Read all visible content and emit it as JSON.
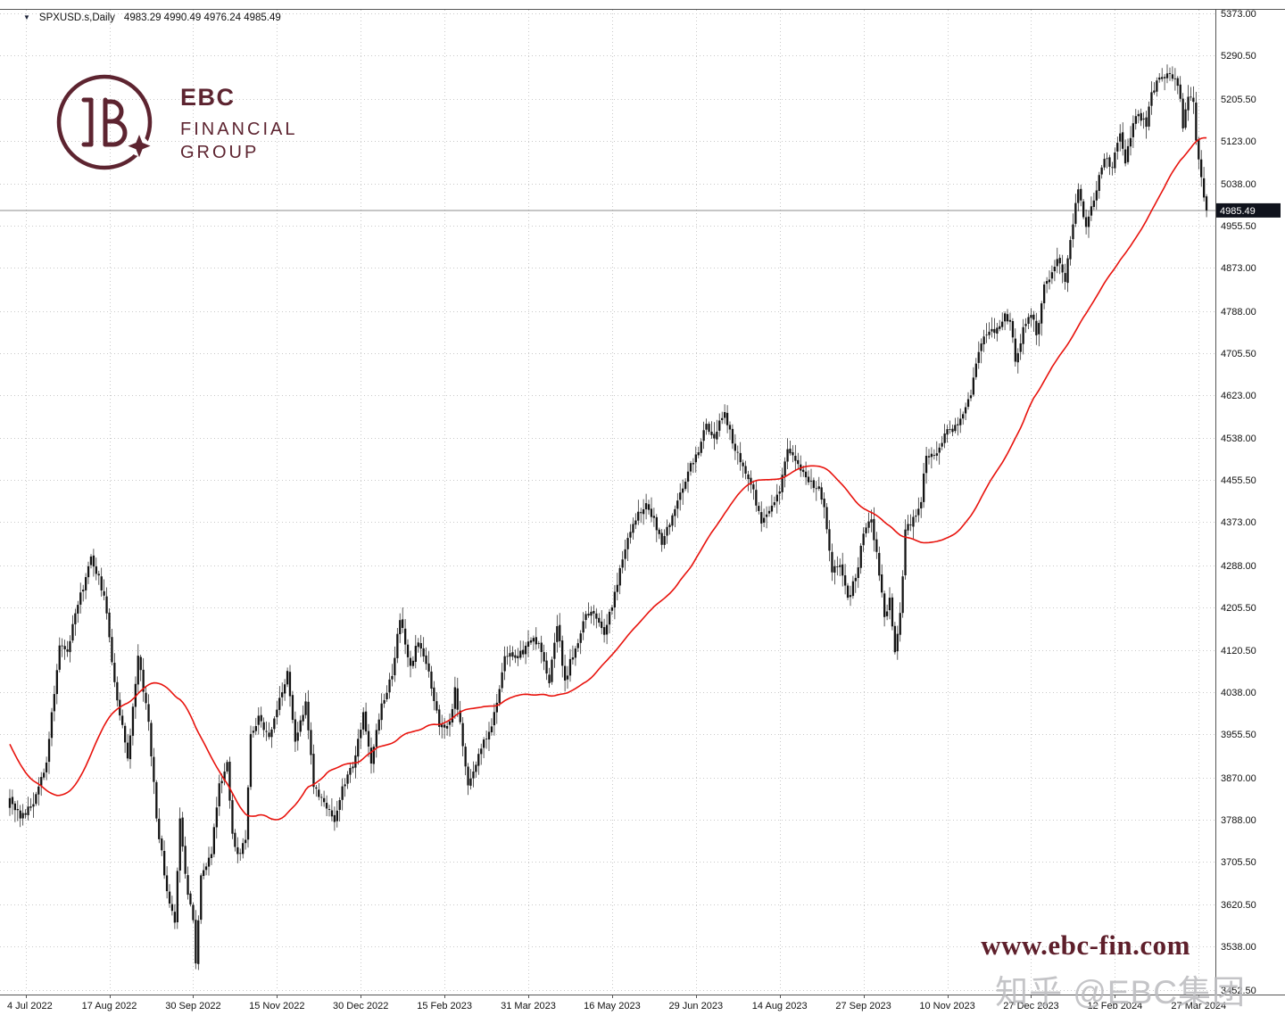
{
  "header": {
    "marker": "▼",
    "symbol": "SPXUSD.s,Daily",
    "ohlc": "4983.29 4990.49 4976.24 4985.49"
  },
  "logo": {
    "line1": "EBC",
    "line2": "FINANCIAL",
    "line3": "GROUP",
    "color": "#5d2430"
  },
  "watermarks": {
    "site": "www.ebc-fin.com",
    "social": "知乎 @EBC集团"
  },
  "chart_data": {
    "type": "candlestick",
    "symbol": "SPXUSD.s",
    "timeframe": "Daily",
    "quote": {
      "open": 4983.29,
      "high": 4990.49,
      "low": 4976.24,
      "close": 4985.49
    },
    "current_price": 4985.49,
    "price_badge": "4985.49",
    "y_axis": {
      "min": 3452.5,
      "max": 5373.0,
      "tick_labels": [
        "5373.00",
        "5290.50",
        "5205.50",
        "5123.00",
        "5038.00",
        "4955.50",
        "4873.00",
        "4788.00",
        "4705.50",
        "4623.00",
        "4538.00",
        "4455.50",
        "4373.00",
        "4288.00",
        "4205.50",
        "4120.50",
        "4038.00",
        "3955.50",
        "3870.00",
        "3788.00",
        "3705.50",
        "3620.50",
        "3538.00",
        "3452.50"
      ]
    },
    "x_axis": {
      "tick_labels": [
        "4 Jul 2022",
        "17 Aug 2022",
        "30 Sep 2022",
        "15 Nov 2022",
        "30 Dec 2022",
        "15 Feb 2023",
        "31 Mar 2023",
        "16 May 2023",
        "29 Jun 2023",
        "14 Aug 2023",
        "27 Sep 2023",
        "10 Nov 2023",
        "27 Dec 2023",
        "12 Feb 2024",
        "27 Mar 2024"
      ],
      "first_tick_candle": 6,
      "tick_step": 32
    },
    "num_candles": 458,
    "prehistory_anchors": [
      [
        -50,
        4390
      ],
      [
        -44,
        4180
      ],
      [
        -40,
        3990
      ],
      [
        -36,
        4120
      ],
      [
        -32,
        4158
      ],
      [
        -27,
        3950
      ],
      [
        -23,
        3790
      ],
      [
        -18,
        3675
      ],
      [
        -13,
        3740
      ],
      [
        -8,
        3820
      ],
      [
        -4,
        3780
      ],
      [
        -1,
        3810
      ]
    ],
    "close_anchors": [
      [
        0,
        3830
      ],
      [
        4,
        3790
      ],
      [
        9,
        3818
      ],
      [
        14,
        3900
      ],
      [
        19,
        4130
      ],
      [
        22,
        4118
      ],
      [
        26,
        4210
      ],
      [
        31,
        4305
      ],
      [
        36,
        4228
      ],
      [
        40,
        4058
      ],
      [
        45,
        3908
      ],
      [
        49,
        4110
      ],
      [
        53,
        3980
      ],
      [
        56,
        3790
      ],
      [
        60,
        3647
      ],
      [
        63,
        3585
      ],
      [
        65,
        3790
      ],
      [
        68,
        3640
      ],
      [
        70,
        3590
      ],
      [
        71,
        3505
      ],
      [
        73,
        3678
      ],
      [
        77,
        3720
      ],
      [
        80,
        3859
      ],
      [
        83,
        3901
      ],
      [
        85,
        3760
      ],
      [
        87,
        3720
      ],
      [
        90,
        3748
      ],
      [
        92,
        3956
      ],
      [
        95,
        3992
      ],
      [
        99,
        3950
      ],
      [
        103,
        4027
      ],
      [
        106,
        4080
      ],
      [
        109,
        3941
      ],
      [
        113,
        4020
      ],
      [
        116,
        3852
      ],
      [
        120,
        3822
      ],
      [
        124,
        3783
      ],
      [
        127,
        3853
      ],
      [
        131,
        3892
      ],
      [
        135,
        3999
      ],
      [
        138,
        3898
      ],
      [
        142,
        4016
      ],
      [
        146,
        4070
      ],
      [
        149,
        4180
      ],
      [
        153,
        4090
      ],
      [
        156,
        4136
      ],
      [
        160,
        4079
      ],
      [
        164,
        3970
      ],
      [
        168,
        3981
      ],
      [
        170,
        4048
      ],
      [
        175,
        3855
      ],
      [
        179,
        3917
      ],
      [
        184,
        3971
      ],
      [
        189,
        4109
      ],
      [
        194,
        4105
      ],
      [
        198,
        4138
      ],
      [
        202,
        4134
      ],
      [
        206,
        4056
      ],
      [
        209,
        4168
      ],
      [
        212,
        4061
      ],
      [
        216,
        4124
      ],
      [
        220,
        4192
      ],
      [
        223,
        4193
      ],
      [
        227,
        4151
      ],
      [
        230,
        4205
      ],
      [
        233,
        4282
      ],
      [
        238,
        4369
      ],
      [
        243,
        4410
      ],
      [
        246,
        4381
      ],
      [
        249,
        4328
      ],
      [
        254,
        4398
      ],
      [
        259,
        4472
      ],
      [
        263,
        4510
      ],
      [
        266,
        4566
      ],
      [
        269,
        4537
      ],
      [
        273,
        4589
      ],
      [
        277,
        4513
      ],
      [
        281,
        4468
      ],
      [
        284,
        4437
      ],
      [
        287,
        4370
      ],
      [
        291,
        4405
      ],
      [
        294,
        4433
      ],
      [
        297,
        4516
      ],
      [
        301,
        4487
      ],
      [
        305,
        4451
      ],
      [
        309,
        4443
      ],
      [
        311,
        4402
      ],
      [
        314,
        4274
      ],
      [
        317,
        4288
      ],
      [
        320,
        4224
      ],
      [
        323,
        4263
      ],
      [
        326,
        4350
      ],
      [
        329,
        4378
      ],
      [
        331,
        4314
      ],
      [
        334,
        4186
      ],
      [
        336,
        4224
      ],
      [
        338,
        4117
      ],
      [
        340,
        4194
      ],
      [
        342,
        4358
      ],
      [
        345,
        4383
      ],
      [
        348,
        4412
      ],
      [
        350,
        4503
      ],
      [
        354,
        4508
      ],
      [
        357,
        4547
      ],
      [
        360,
        4550
      ],
      [
        364,
        4585
      ],
      [
        367,
        4622
      ],
      [
        370,
        4707
      ],
      [
        374,
        4747
      ],
      [
        377,
        4755
      ],
      [
        380,
        4783
      ],
      [
        382,
        4770
      ],
      [
        384,
        4688
      ],
      [
        387,
        4756
      ],
      [
        390,
        4780
      ],
      [
        392,
        4740
      ],
      [
        395,
        4840
      ],
      [
        398,
        4864
      ],
      [
        400,
        4890
      ],
      [
        403,
        4845
      ],
      [
        406,
        4958
      ],
      [
        408,
        5027
      ],
      [
        411,
        4953
      ],
      [
        414,
        5005
      ],
      [
        417,
        5070
      ],
      [
        419,
        5088
      ],
      [
        421,
        5070
      ],
      [
        424,
        5137
      ],
      [
        426,
        5078
      ],
      [
        429,
        5157
      ],
      [
        431,
        5175
      ],
      [
        434,
        5150
      ],
      [
        436,
        5218
      ],
      [
        438,
        5241
      ],
      [
        441,
        5248
      ],
      [
        443,
        5254
      ],
      [
        445,
        5244
      ],
      [
        447,
        5205
      ],
      [
        448,
        5147
      ],
      [
        450,
        5209
      ],
      [
        452,
        5199
      ],
      [
        453,
        5123
      ],
      [
        455,
        5051
      ],
      [
        456,
        5011
      ],
      [
        457,
        4985.49
      ]
    ],
    "ma": {
      "window": 50,
      "color": "#e8130d"
    },
    "noise": {
      "seed": 424242,
      "close_jitter": 11,
      "gap_jitter": 5,
      "wick_min": 4,
      "wick_var": 20
    },
    "colors": {
      "candle": "#151515",
      "grid": "#c9c9c9",
      "price_line": "#8c8c8c",
      "badge_bg": "#10131d",
      "axis_text": "#111111",
      "frame": "#555555",
      "background": "#ffffff"
    }
  }
}
